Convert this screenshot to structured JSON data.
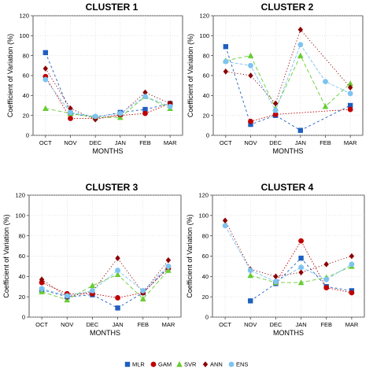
{
  "colors": {
    "MLR": "#1f5fbf",
    "GAM": "#c00000",
    "SVR": "#66cc33",
    "ANN": "#8b0000",
    "ENS": "#7ec3f0"
  },
  "legend": {
    "position": "bottom",
    "items": [
      {
        "name": "MLR",
        "marker": "square"
      },
      {
        "name": "GAM",
        "marker": "circle"
      },
      {
        "name": "SVR",
        "marker": "triangle"
      },
      {
        "name": "ANN",
        "marker": "diamond"
      },
      {
        "name": "ENS",
        "marker": "circle"
      }
    ]
  },
  "chart_data": [
    {
      "type": "line",
      "title": "CLUSTER 1",
      "xlabel": "MONTHS",
      "ylabel": "Coefficient of Variation (%)",
      "categories": [
        "OCT",
        "NOV",
        "DEC",
        "JAN",
        "FEB",
        "MAR"
      ],
      "ylim": [
        0,
        120
      ],
      "yticks": [
        0,
        20,
        40,
        60,
        80,
        100,
        120
      ],
      "grid": true,
      "series": [
        {
          "name": "MLR",
          "values": [
            83,
            22,
            18,
            23,
            26,
            32
          ]
        },
        {
          "name": "GAM",
          "values": [
            59,
            17,
            17,
            20,
            22,
            32
          ]
        },
        {
          "name": "SVR",
          "values": [
            27,
            22,
            18,
            18,
            39,
            27
          ]
        },
        {
          "name": "ANN",
          "values": [
            67,
            27,
            16,
            21,
            43,
            32
          ]
        },
        {
          "name": "ENS",
          "values": [
            56,
            23,
            19,
            22,
            39,
            29
          ]
        }
      ]
    },
    {
      "type": "line",
      "title": "CLUSTER 2",
      "xlabel": "MONTHS",
      "ylabel": "Coefficient of Variation (%)",
      "categories": [
        "OCT",
        "NOV",
        "DEC",
        "JAN",
        "FEB",
        "MAR"
      ],
      "ylim": [
        0,
        120
      ],
      "yticks": [
        0,
        20,
        40,
        60,
        80,
        100,
        120
      ],
      "grid": true,
      "series": [
        {
          "name": "MLR",
          "values": [
            89,
            11,
            20,
            5,
            null,
            30
          ]
        },
        {
          "name": "GAM",
          "values": [
            null,
            14,
            21,
            null,
            null,
            26
          ]
        },
        {
          "name": "SVR",
          "values": [
            75,
            80,
            27,
            80,
            29,
            52
          ]
        },
        {
          "name": "ANN",
          "values": [
            64,
            60,
            32,
            106,
            null,
            48
          ]
        },
        {
          "name": "ENS",
          "values": [
            74,
            70,
            25,
            91,
            54,
            42
          ]
        }
      ]
    },
    {
      "type": "line",
      "title": "CLUSTER 3",
      "xlabel": "MONTHS",
      "ylabel": "Coefficient of Variation (%)",
      "categories": [
        "OCT",
        "NOV",
        "DEC",
        "JAN",
        "FEB",
        "MAR"
      ],
      "ylim": [
        0,
        120
      ],
      "yticks": [
        0,
        20,
        40,
        60,
        80,
        100,
        120
      ],
      "grid": true,
      "series": [
        {
          "name": "MLR",
          "values": [
            27,
            20,
            22,
            9,
            24,
            49
          ]
        },
        {
          "name": "GAM",
          "values": [
            34,
            23,
            23,
            19,
            24,
            48
          ]
        },
        {
          "name": "SVR",
          "values": [
            25,
            17,
            31,
            42,
            18,
            46
          ]
        },
        {
          "name": "ANN",
          "values": [
            37,
            20,
            25,
            58,
            24,
            56
          ]
        },
        {
          "name": "ENS",
          "values": [
            28,
            21,
            26,
            46,
            26,
            50
          ]
        }
      ]
    },
    {
      "type": "line",
      "title": "CLUSTER 4",
      "xlabel": "MONTHS",
      "ylabel": "Coefficient of Variation (%)",
      "categories": [
        "OCT",
        "NOV",
        "DEC",
        "JAN",
        "FEB",
        "MAR"
      ],
      "ylim": [
        0,
        120
      ],
      "yticks": [
        0,
        20,
        40,
        60,
        80,
        100,
        120
      ],
      "grid": true,
      "series": [
        {
          "name": "MLR",
          "values": [
            null,
            16,
            33,
            58,
            30,
            26
          ]
        },
        {
          "name": "GAM",
          "values": [
            null,
            null,
            34,
            75,
            29,
            24
          ]
        },
        {
          "name": "SVR",
          "values": [
            null,
            41,
            34,
            34,
            39,
            50
          ]
        },
        {
          "name": "ANN",
          "values": [
            95,
            47,
            40,
            44,
            52,
            60
          ]
        },
        {
          "name": "ENS",
          "values": [
            90,
            46,
            35,
            49,
            37,
            52
          ]
        }
      ]
    }
  ]
}
